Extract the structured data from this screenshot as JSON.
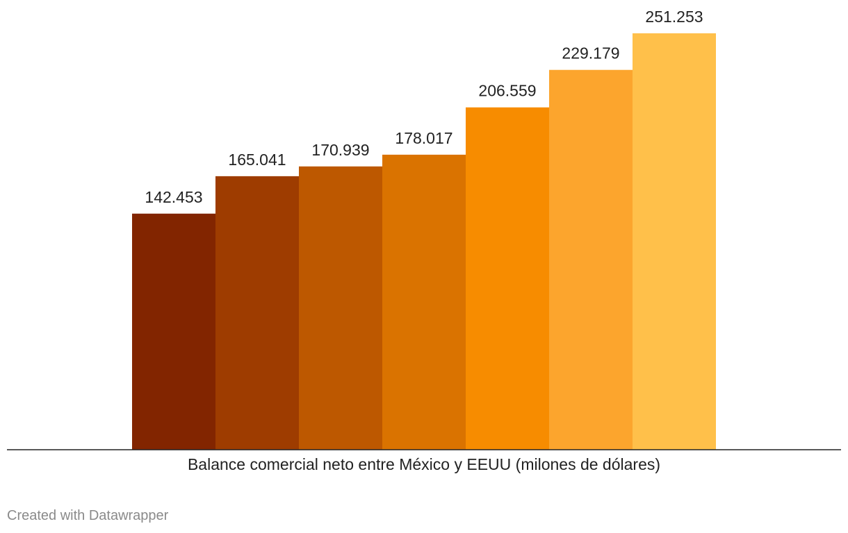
{
  "chart_data": {
    "type": "bar",
    "title": "",
    "xlabel": "Balance comercial neto entre México y EEUU (milones de dólares)",
    "ylabel": "",
    "ylim": [
      0,
      251.253
    ],
    "grid": false,
    "values": [
      142.453,
      165.041,
      170.939,
      178.017,
      206.559,
      229.179,
      251.253
    ],
    "value_labels": [
      "142.453",
      "165.041",
      "170.939",
      "178.017",
      "206.559",
      "229.179",
      "251.253"
    ],
    "colors": [
      "#822500",
      "#9e3c00",
      "#bd5800",
      "#da7300",
      "#f78c00",
      "#fca52d",
      "#ffc04a"
    ]
  },
  "credit": "Created with Datawrapper"
}
